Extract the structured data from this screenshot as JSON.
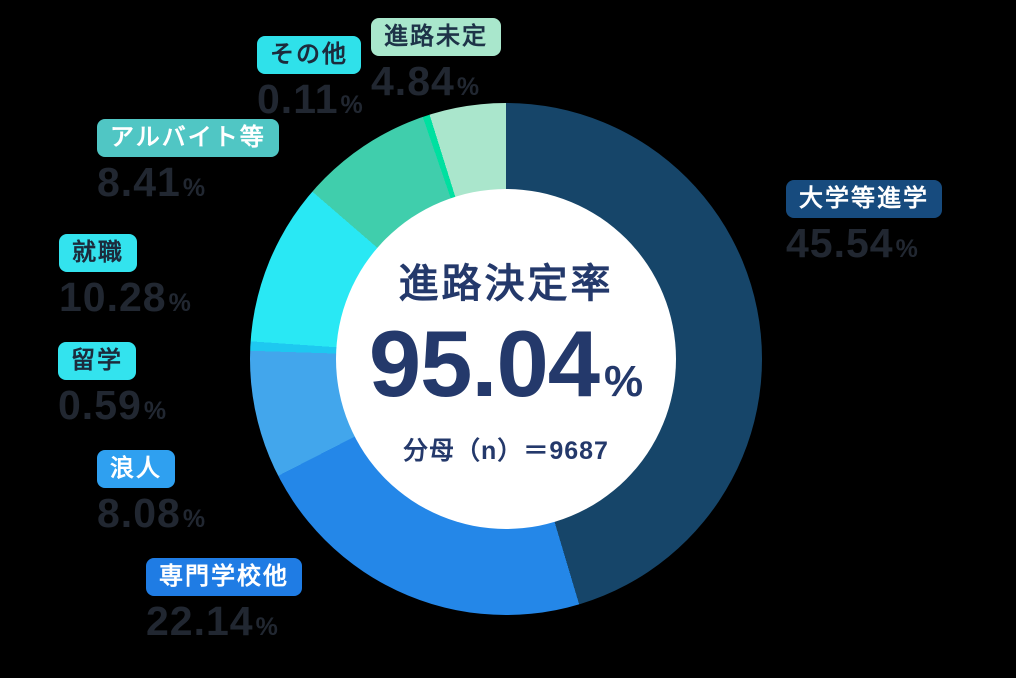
{
  "background_color": "#000000",
  "unit": "%",
  "chart_data": {
    "type": "donut",
    "title": "進路決定率",
    "direction": "clockwise",
    "start_angle_deg": 0,
    "center": {
      "label": "進路決定率",
      "value": "95.04",
      "unit": "%",
      "denominator": "分母（n）＝9687"
    },
    "segments": [
      {
        "label": "大学等進学",
        "value": 45.54,
        "display": "45.54",
        "color": "#164569",
        "tag_bg": "#174B7E",
        "tag_text": "#FFFFFF"
      },
      {
        "label": "専門学校他",
        "value": 22.14,
        "display": "22.14",
        "color": "#2487E8",
        "tag_bg": "#1F7CE4",
        "tag_text": "#FFFFFF"
      },
      {
        "label": "浪人",
        "value": 8.08,
        "display": "8.08",
        "color": "#42A6EC",
        "tag_bg": "#2FA0F0",
        "tag_text": "#FFFFFF"
      },
      {
        "label": "留学",
        "value": 0.59,
        "display": "0.59",
        "color": "#1EC8F0",
        "tag_bg": "#33E3EE",
        "tag_text": "#1C2B3C"
      },
      {
        "label": "就職",
        "value": 10.28,
        "display": "10.28",
        "color": "#29E8F4",
        "tag_bg": "#33E3EE",
        "tag_text": "#1C2B3C"
      },
      {
        "label": "アルバイト等",
        "value": 8.41,
        "display": "8.41",
        "color": "#40CEAC",
        "tag_bg": "#50C6C4",
        "tag_text": "#FFFFFF"
      },
      {
        "label": "その他",
        "value": 0.11,
        "display": "0.11",
        "color": "#00E0A0",
        "tag_bg": "#2FE1EA",
        "tag_text": "#1C2B3C"
      },
      {
        "label": "進路未定",
        "value": 4.84,
        "display": "4.84",
        "color": "#AAE6CC",
        "tag_bg": "#A9E7CC",
        "tag_text": "#1E3348"
      }
    ],
    "percent_text_color": "#212731"
  }
}
